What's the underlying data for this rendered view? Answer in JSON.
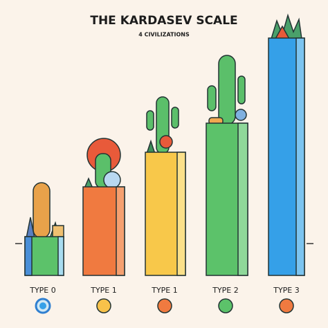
{
  "header": {
    "title": "THE KARDASEV SCALE",
    "subtitle": "4 CIVILIZATIONS"
  },
  "labels": [
    "TYPE 0",
    "TYPE 1",
    "TYPE 1",
    "TYPE 2",
    "TYPE 3"
  ]
}
